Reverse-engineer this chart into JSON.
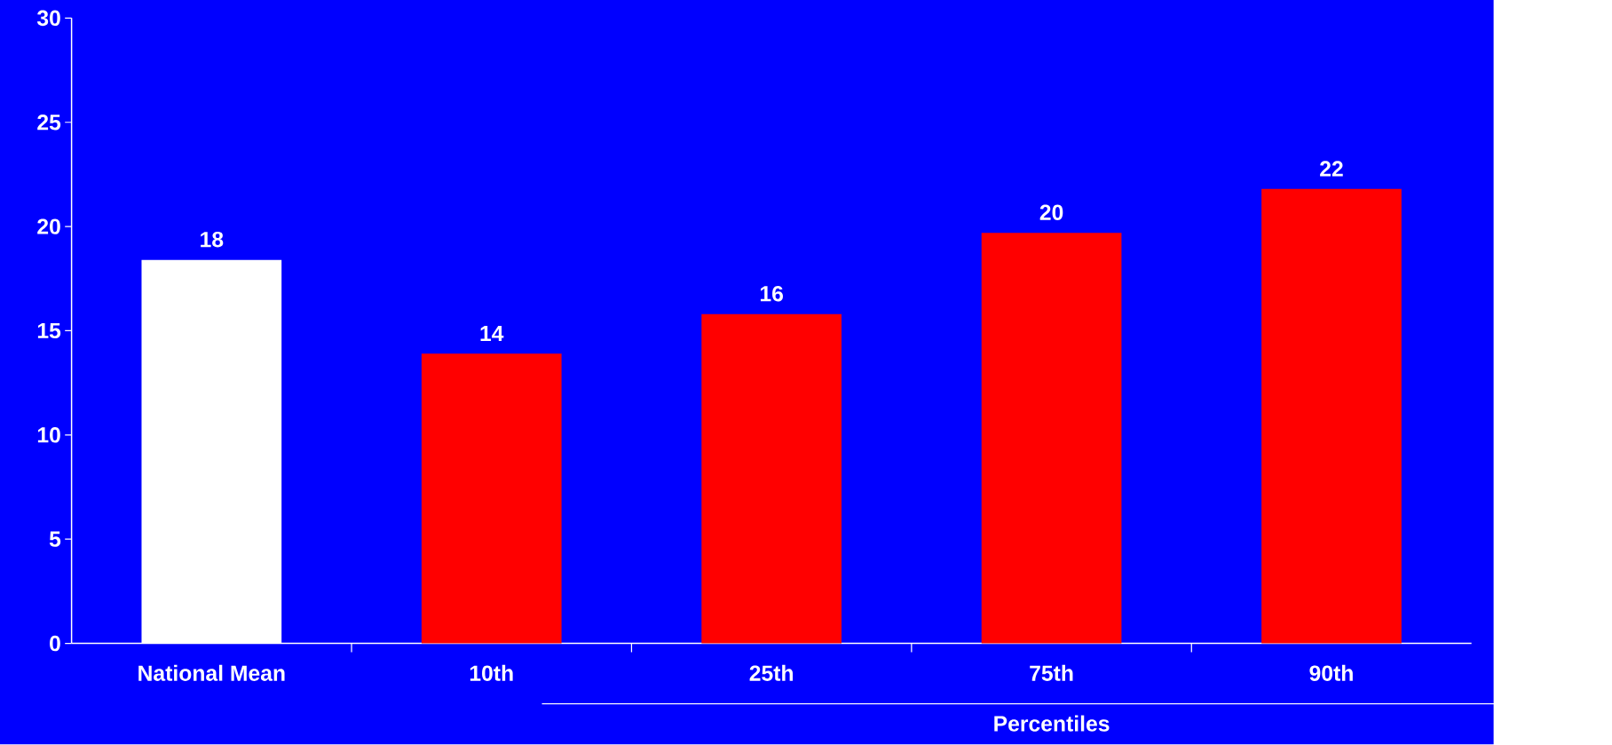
{
  "chart_data": {
    "type": "bar",
    "categories": [
      "National Mean",
      "10th",
      "25th",
      "75th",
      "90th"
    ],
    "values": [
      18.4,
      13.9,
      15.8,
      19.7,
      21.8
    ],
    "value_labels": [
      "18",
      "14",
      "16",
      "20",
      "22"
    ],
    "colors": [
      "#ffffff",
      "#ff0000",
      "#ff0000",
      "#ff0000",
      "#ff0000"
    ],
    "xlabel": "Percentiles",
    "ylim": [
      0,
      30
    ],
    "yticks": [
      0,
      5,
      10,
      15,
      20,
      25,
      30
    ],
    "grid": false
  }
}
